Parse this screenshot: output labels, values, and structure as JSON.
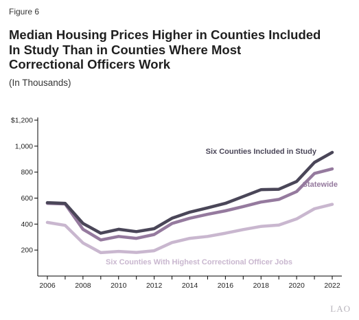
{
  "figure_label": "Figure 6",
  "title_lines": [
    "Median Housing Prices Higher in Counties Included",
    "In Study Than in Counties Where Most",
    "Correctional Officers Work"
  ],
  "subtitle": "(In Thousands)",
  "logo": "LAO",
  "colors": {
    "study": "#4a4658",
    "statewide": "#957a9e",
    "correctional": "#c9b7cf",
    "axis": "#000000",
    "grid": "#f1f1f1"
  },
  "chart_data": {
    "type": "line",
    "x": [
      2006,
      2007,
      2008,
      2009,
      2010,
      2011,
      2012,
      2013,
      2014,
      2015,
      2016,
      2017,
      2018,
      2019,
      2020,
      2021,
      2022
    ],
    "x_ticks": [
      2006,
      2008,
      2010,
      2012,
      2014,
      2016,
      2018,
      2020,
      2022
    ],
    "x_tick_labels": [
      "2006",
      "2008",
      "2010",
      "2012",
      "2014",
      "2016",
      "2018",
      "2020",
      "2022"
    ],
    "y_ticks": [
      200,
      400,
      600,
      800,
      1000,
      1200
    ],
    "y_tick_labels": [
      "200",
      "400",
      "600",
      "800",
      "1,000",
      "$1,200"
    ],
    "ylim": [
      0,
      1200
    ],
    "xlabel": "",
    "ylabel": "",
    "grid": false,
    "series": [
      {
        "key": "study",
        "name": "Six Counties Included in Study",
        "values": [
          565,
          560,
          405,
          330,
          360,
          342,
          365,
          445,
          492,
          525,
          560,
          612,
          665,
          668,
          728,
          875,
          952
        ]
      },
      {
        "key": "statewide",
        "name": "Statewide",
        "values": [
          560,
          555,
          360,
          278,
          305,
          290,
          320,
          405,
          445,
          475,
          502,
          535,
          570,
          590,
          650,
          790,
          825
        ]
      },
      {
        "key": "correctional",
        "name": "Six Counties With Highest Correctional Officer Jobs",
        "values": [
          413,
          390,
          255,
          180,
          190,
          182,
          195,
          258,
          290,
          305,
          330,
          358,
          382,
          393,
          440,
          518,
          552
        ]
      }
    ]
  }
}
